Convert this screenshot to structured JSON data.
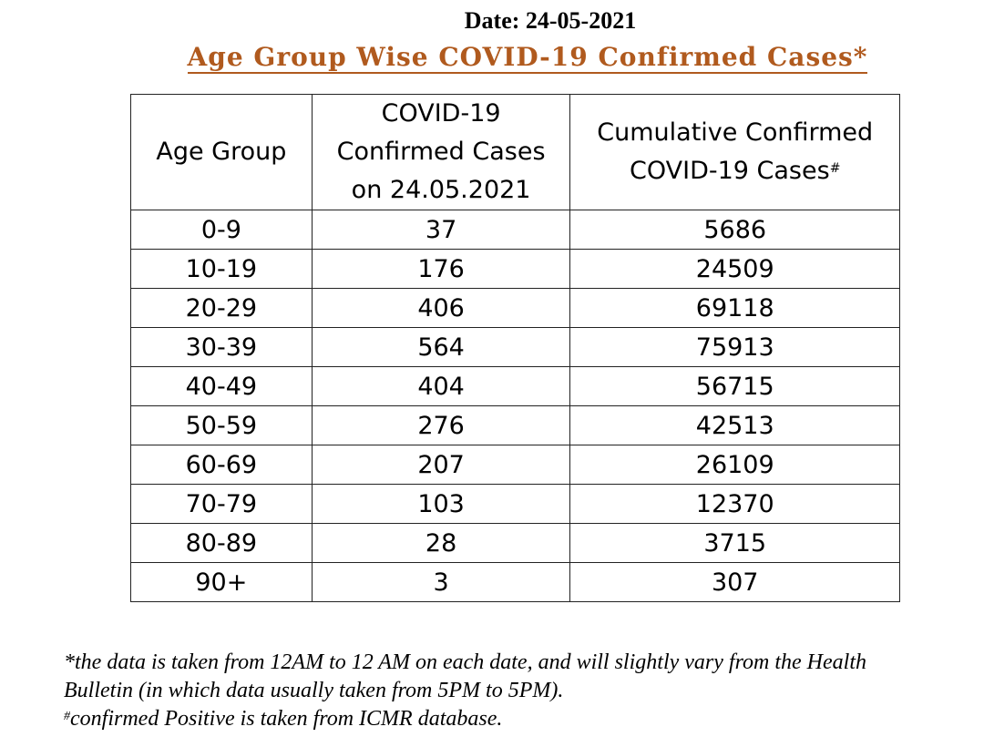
{
  "header": {
    "date": "Date: 24-05-2021",
    "title": "Age Group Wise COVID-19 Confirmed Cases*"
  },
  "table": {
    "headers": {
      "age_group": "Age Group",
      "cases_line1": "COVID-19",
      "cases_line2": "Confirmed Cases",
      "cases_line3": "on 24.05.2021",
      "cumulative_line1": "Cumulative Confirmed",
      "cumulative_line2": "COVID-19 Cases",
      "cumulative_mark": "#"
    },
    "rows": [
      {
        "age": "0-9",
        "cases": "37",
        "cumulative": "5686"
      },
      {
        "age": "10-19",
        "cases": "176",
        "cumulative": "24509"
      },
      {
        "age": "20-29",
        "cases": "406",
        "cumulative": "69118"
      },
      {
        "age": "30-39",
        "cases": "564",
        "cumulative": "75913"
      },
      {
        "age": "40-49",
        "cases": "404",
        "cumulative": "56715"
      },
      {
        "age": "50-59",
        "cases": "276",
        "cumulative": "42513"
      },
      {
        "age": "60-69",
        "cases": "207",
        "cumulative": "26109"
      },
      {
        "age": "70-79",
        "cases": "103",
        "cumulative": "12370"
      },
      {
        "age": "80-89",
        "cases": "28",
        "cumulative": "3715"
      },
      {
        "age": "90+",
        "cases": "3",
        "cumulative": "307"
      }
    ]
  },
  "footnotes": {
    "note1_line1": "*the data is taken from 12AM to 12 AM on each date, and will slightly vary from the Health",
    "note1_line2": "Bulletin (in which data usually taken from 5PM to 5PM).",
    "note2_mark": "#",
    "note2_text": "confirmed Positive is taken from ICMR database."
  },
  "colors": {
    "title": "#b05a1e"
  }
}
